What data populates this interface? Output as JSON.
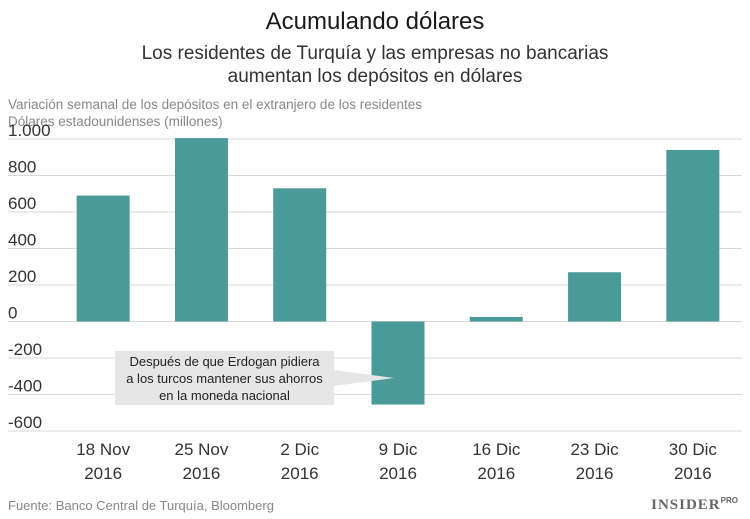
{
  "chart_data": {
    "type": "bar",
    "title": "Acumulando dólares",
    "subtitle_lines": [
      "Los residentes de Turquía y las empresas no bancarias",
      "aumentan los depósitos en dólares"
    ],
    "ylabel_lines": [
      "Variación semanal de los depósitos en el extranjero de los residentes",
      "Dólares estadounidenses (millones)"
    ],
    "categories": [
      [
        "18 Nov",
        "2016"
      ],
      [
        "25 Nov",
        "2016"
      ],
      [
        "2 Dic",
        "2016"
      ],
      [
        "9 Dic",
        "2016"
      ],
      [
        "16 Dic",
        "2016"
      ],
      [
        "23 Dic",
        "2016"
      ],
      [
        "30 Dic",
        "2016"
      ]
    ],
    "values": [
      690,
      1005,
      730,
      -455,
      25,
      270,
      940
    ],
    "ylim": [
      -600,
      1000
    ],
    "yticks": [
      1000,
      800,
      600,
      400,
      200,
      0,
      -200,
      -400,
      -600
    ],
    "ytick_labels": [
      "1.000",
      "800",
      "600",
      "400",
      "200",
      "0",
      "-200",
      "-400",
      "-600"
    ],
    "grid": true,
    "bar_color": "#4a9a9a",
    "annotation": {
      "lines": [
        "Después de que Erdogan pidiera",
        "a los turcos mantener sus ahorros",
        "en la moneda nacional"
      ],
      "target_category_index": 3
    },
    "source": "Fuente: Banco Central de Turquía, Bloomberg"
  },
  "brand": {
    "name": "INSIDER",
    "suffix": "PRO"
  }
}
